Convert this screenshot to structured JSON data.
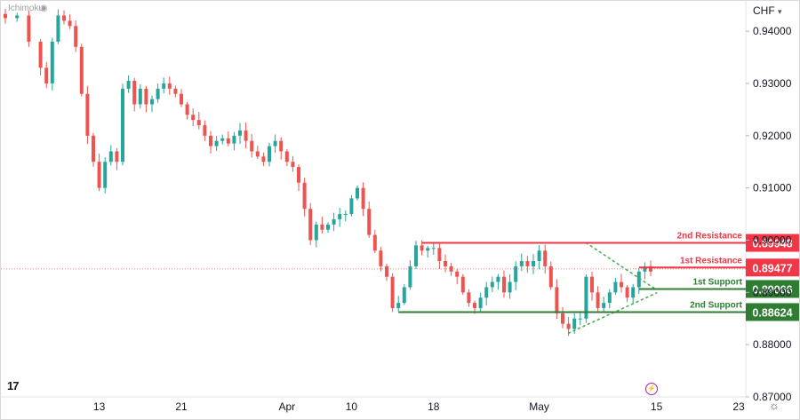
{
  "header": {
    "indicator": "Ichimoku",
    "currency": "CHF",
    "currency_caret": "▾"
  },
  "footer": {
    "logo": "17"
  },
  "colors": {
    "up": "#26a69a",
    "down": "#ef5350",
    "resistance": "#f23645",
    "support": "#2e7d32",
    "triangle": "#4caf50",
    "price_line": "#ef5350"
  },
  "chart_data": {
    "type": "candlestick",
    "title": "",
    "xlabel": "",
    "ylabel": "",
    "ylim": [
      0.87,
      0.9458
    ],
    "y_ticks": [
      "0.94000",
      "0.93000",
      "0.92000",
      "0.91000",
      "0.90000",
      "0.89000",
      "0.88000",
      "0.87000"
    ],
    "y_tick_values": [
      0.94,
      0.93,
      0.92,
      0.91,
      0.9,
      0.89,
      0.88,
      0.87
    ],
    "x_ticks": [
      {
        "label": "13",
        "index": 16
      },
      {
        "label": "21",
        "index": 30
      },
      {
        "label": "Apr",
        "index": 48
      },
      {
        "label": "10",
        "index": 59
      },
      {
        "label": "18",
        "index": 73
      },
      {
        "label": "May",
        "index": 91
      },
      {
        "label": "15",
        "index": 111
      },
      {
        "label": "23",
        "index": 125
      }
    ],
    "close_keyframes": [
      [
        0,
        0.9425
      ],
      [
        2,
        0.943
      ],
      [
        4,
        0.938
      ],
      [
        6,
        0.933
      ],
      [
        7,
        0.93
      ],
      [
        8,
        0.938
      ],
      [
        9,
        0.943
      ],
      [
        10,
        0.942
      ],
      [
        11,
        0.941
      ],
      [
        12,
        0.937
      ],
      [
        13,
        0.928
      ],
      [
        14,
        0.92
      ],
      [
        15,
        0.915
      ],
      [
        16,
        0.91
      ],
      [
        17,
        0.915
      ],
      [
        18,
        0.917
      ],
      [
        19,
        0.915
      ],
      [
        20,
        0.929
      ],
      [
        21,
        0.9305
      ],
      [
        22,
        0.926
      ],
      [
        23,
        0.929
      ],
      [
        24,
        0.926
      ],
      [
        25,
        0.927
      ],
      [
        26,
        0.929
      ],
      [
        27,
        0.93
      ],
      [
        28,
        0.929
      ],
      [
        29,
        0.928
      ],
      [
        30,
        0.926
      ],
      [
        31,
        0.924
      ],
      [
        32,
        0.923
      ],
      [
        33,
        0.922
      ],
      [
        34,
        0.92
      ],
      [
        35,
        0.918
      ],
      [
        36,
        0.919
      ],
      [
        37,
        0.9195
      ],
      [
        38,
        0.9185
      ],
      [
        39,
        0.92
      ],
      [
        40,
        0.921
      ],
      [
        41,
        0.919
      ],
      [
        42,
        0.917
      ],
      [
        43,
        0.916
      ],
      [
        44,
        0.915
      ],
      [
        45,
        0.918
      ],
      [
        46,
        0.919
      ],
      [
        47,
        0.917
      ],
      [
        48,
        0.915
      ],
      [
        49,
        0.914
      ],
      [
        50,
        0.911
      ],
      [
        51,
        0.906
      ],
      [
        52,
        0.9
      ],
      [
        53,
        0.903
      ],
      [
        54,
        0.902
      ],
      [
        55,
        0.903
      ],
      [
        56,
        0.904
      ],
      [
        57,
        0.905
      ],
      [
        58,
        0.905
      ],
      [
        59,
        0.908
      ],
      [
        60,
        0.91
      ],
      [
        61,
        0.906
      ],
      [
        62,
        0.901
      ],
      [
        63,
        0.898
      ],
      [
        64,
        0.895
      ],
      [
        65,
        0.893
      ],
      [
        66,
        0.887
      ],
      [
        67,
        0.888
      ],
      [
        68,
        0.891
      ],
      [
        69,
        0.895
      ],
      [
        70,
        0.899
      ],
      [
        71,
        0.898
      ],
      [
        72,
        0.8985
      ],
      [
        73,
        0.8985
      ],
      [
        74,
        0.896
      ],
      [
        75,
        0.895
      ],
      [
        76,
        0.894
      ],
      [
        77,
        0.893
      ],
      [
        78,
        0.89
      ],
      [
        79,
        0.888
      ],
      [
        80,
        0.887
      ],
      [
        81,
        0.889
      ],
      [
        82,
        0.891
      ],
      [
        83,
        0.892
      ],
      [
        84,
        0.893
      ],
      [
        85,
        0.89
      ],
      [
        86,
        0.892
      ],
      [
        87,
        0.895
      ],
      [
        88,
        0.896
      ],
      [
        89,
        0.895
      ],
      [
        90,
        0.896
      ],
      [
        91,
        0.898
      ],
      [
        92,
        0.895
      ],
      [
        93,
        0.891
      ],
      [
        94,
        0.886
      ],
      [
        95,
        0.884
      ],
      [
        96,
        0.883
      ],
      [
        97,
        0.885
      ],
      [
        98,
        0.885
      ],
      [
        99,
        0.893
      ],
      [
        100,
        0.89
      ],
      [
        101,
        0.887
      ],
      [
        102,
        0.888
      ],
      [
        103,
        0.89
      ],
      [
        104,
        0.892
      ],
      [
        105,
        0.891
      ],
      [
        106,
        0.889
      ],
      [
        107,
        0.891
      ],
      [
        108,
        0.894
      ],
      [
        109,
        0.895
      ],
      [
        110,
        0.894
      ]
    ],
    "levels": [
      {
        "name": "2nd Resistance",
        "value": 0.89948,
        "price": "0.89948",
        "kind": "resistance",
        "from_index": 71
      },
      {
        "name": "1st Resistance",
        "value": 0.89477,
        "price": "0.89477",
        "kind": "resistance",
        "from_index": 108
      },
      {
        "name": "1st Support",
        "value": 0.89066,
        "price": "0.89066",
        "kind": "support",
        "from_index": 108
      },
      {
        "name": "2nd Support",
        "value": 0.88624,
        "price": "0.88624",
        "kind": "support",
        "from_index": 67
      }
    ],
    "triangle": {
      "upper": [
        [
          99,
          0.8995
        ],
        [
          111,
          0.8905
        ]
      ],
      "lower": [
        [
          96,
          0.8822
        ],
        [
          111,
          0.8899
        ]
      ]
    },
    "last_price": 0.8945
  }
}
